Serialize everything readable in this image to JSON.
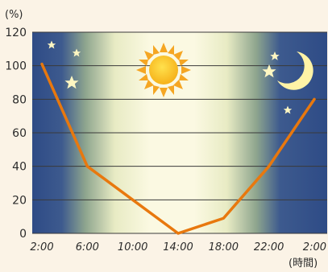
{
  "chart_data": {
    "type": "line",
    "x": [
      "2:00",
      "6:00",
      "10:00",
      "14:00",
      "18:00",
      "22:00",
      "2:00"
    ],
    "series": [
      {
        "values": [
          101,
          40,
          20,
          0,
          9,
          40,
          80
        ]
      }
    ],
    "ylim": [
      0,
      120
    ],
    "yticks": [
      0,
      20,
      40,
      60,
      80,
      100,
      120
    ],
    "y_unit": "(%)",
    "x_unit": "(時間)",
    "grid": true,
    "line_color": "#e8780e",
    "night_color": "#2e4b86",
    "day_color": "#f7f5d8"
  }
}
